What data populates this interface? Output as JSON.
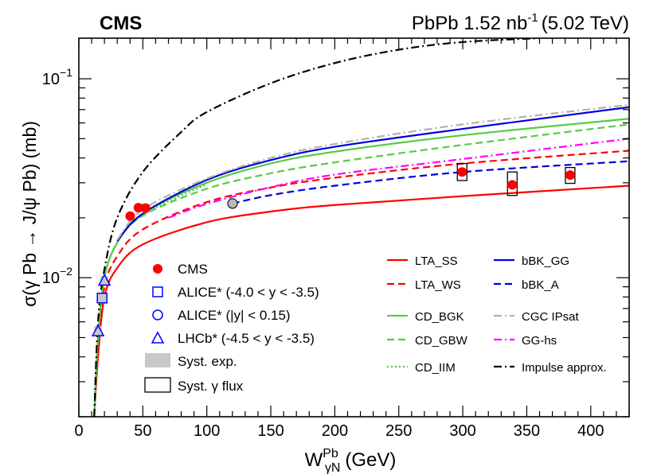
{
  "header": {
    "experiment": "CMS",
    "dataset_prefix": "PbPb 1.52 nb",
    "dataset_exp": "-1",
    "dataset_suffix": "(5.02 TeV)"
  },
  "chart_data": {
    "type": "scatter",
    "title": "",
    "xlabel_main": "W",
    "xlabel_sub": "γN",
    "xlabel_sup": "Pb",
    "xlabel_unit": "(GeV)",
    "ylabel": "σ(γ Pb → J/ψ Pb) (mb)",
    "xlim": [
      0,
      430
    ],
    "ylim": [
      0.002,
      0.16
    ],
    "yscale": "log",
    "x_ticks": [
      "0",
      "50",
      "100",
      "150",
      "200",
      "250",
      "300",
      "350",
      "400"
    ],
    "x_tick_values": [
      0,
      50,
      100,
      150,
      200,
      250,
      300,
      350,
      400
    ],
    "y_tick_labels": [
      {
        "value": 0.01,
        "base": "10",
        "exp": "−2"
      },
      {
        "value": 0.1,
        "base": "10",
        "exp": "−1"
      }
    ],
    "grid": false,
    "markers": [
      {
        "name": "CMS",
        "legend_label": "CMS",
        "shape": "filled-circle",
        "color": "#ff0000",
        "points": [
          {
            "x": 40.1,
            "y": 0.0204,
            "syst_lo": 0.0199,
            "syst_hi": 0.0209,
            "flux_lo": 0.0198,
            "flux_hi": 0.021,
            "xerr": 2
          },
          {
            "x": 46.5,
            "y": 0.0225,
            "syst_lo": 0.0217,
            "syst_hi": 0.0234,
            "flux_lo": 0.0216,
            "flux_hi": 0.0235,
            "xerr": 2
          },
          {
            "x": 52.1,
            "y": 0.0224,
            "syst_lo": 0.0212,
            "syst_hi": 0.0236,
            "flux_lo": 0.0211,
            "flux_hi": 0.0237,
            "xerr": 2
          },
          {
            "x": 299.5,
            "y": 0.034,
            "syst_lo": 0.0325,
            "syst_hi": 0.0356,
            "flux_lo": 0.0308,
            "flux_hi": 0.0375,
            "xerr": 3
          },
          {
            "x": 338.7,
            "y": 0.0293,
            "syst_lo": 0.0281,
            "syst_hi": 0.0306,
            "flux_lo": 0.0259,
            "flux_hi": 0.034,
            "xerr": 3
          },
          {
            "x": 383.9,
            "y": 0.0328,
            "syst_lo": 0.0314,
            "syst_hi": 0.0342,
            "flux_lo": 0.0298,
            "flux_hi": 0.0358,
            "xerr": 3
          }
        ]
      },
      {
        "name": "ALICE-forward",
        "legend_label": "ALICE* (-4.0 < y < -3.5)",
        "shape": "open-square",
        "color": "#0000ff",
        "points": [
          {
            "x": 18.2,
            "y": 0.0079,
            "syst_lo": 0.0074,
            "syst_hi": 0.0084
          }
        ]
      },
      {
        "name": "ALICE-mid",
        "legend_label": "ALICE* (|y| < 0.15)",
        "shape": "open-circle",
        "color": "#0000ff",
        "points": [
          {
            "x": 120.1,
            "y": 0.0236
          }
        ]
      },
      {
        "name": "LHCb",
        "legend_label": "LHCb* (-4.5 < y < -3.5)",
        "shape": "open-triangle",
        "color": "#0000ff",
        "points": [
          {
            "x": 15.0,
            "y": 0.0054,
            "syst_lo": 0.0051,
            "syst_hi": 0.0057
          },
          {
            "x": 20.0,
            "y": 0.0097,
            "syst_lo": 0.0092,
            "syst_hi": 0.0102
          }
        ]
      }
    ],
    "band_legend": [
      {
        "name": "syst-exp",
        "label": "Syst. exp.",
        "style": "filled-gray"
      },
      {
        "name": "syst-flux",
        "label": "Syst. γ flux",
        "style": "open-box"
      }
    ],
    "series": [
      {
        "name": "LTA_SS",
        "legend_label": "LTA_SS",
        "color": "#ff0000",
        "dash": "solid",
        "x": [
          12,
          15,
          20,
          30,
          50,
          100,
          150,
          200,
          300,
          430
        ],
        "y": [
          0.002,
          0.004,
          0.008,
          0.0112,
          0.0147,
          0.019,
          0.0215,
          0.0232,
          0.0257,
          0.029
        ]
      },
      {
        "name": "LTA_WS",
        "legend_label": "LTA_WS",
        "color": "#ff0000",
        "dash": "dashed",
        "x": [
          12,
          15,
          20,
          30,
          50,
          100,
          150,
          200,
          300,
          430
        ],
        "y": [
          0.002,
          0.0045,
          0.009,
          0.0128,
          0.0175,
          0.024,
          0.0284,
          0.0318,
          0.0375,
          0.0435
        ]
      },
      {
        "name": "CD_BGK",
        "legend_label": "CD_BGK",
        "color": "#55cc44",
        "dash": "solid",
        "x": [
          12,
          15,
          20,
          30,
          50,
          100,
          150,
          200,
          300,
          430
        ],
        "y": [
          0.002,
          0.005,
          0.01,
          0.015,
          0.021,
          0.03,
          0.0375,
          0.043,
          0.052,
          0.063
        ]
      },
      {
        "name": "CD_GBW",
        "legend_label": "CD_GBW",
        "color": "#55cc44",
        "dash": "dashed",
        "x": [
          12,
          15,
          20,
          30,
          50,
          100,
          150,
          200,
          300,
          430
        ],
        "y": [
          0.002,
          0.005,
          0.01,
          0.015,
          0.0205,
          0.028,
          0.0335,
          0.038,
          0.0465,
          0.059
        ]
      },
      {
        "name": "CD_IIM",
        "legend_label": "CD_IIM",
        "color": "#55cc44",
        "dash": "dotted",
        "x": [
          12,
          15,
          20,
          30,
          50,
          100
        ],
        "y": [
          0.002,
          0.005,
          0.01,
          0.015,
          0.0207,
          0.0295
        ]
      },
      {
        "name": "bBK_GG",
        "legend_label": "bBK_GG",
        "color": "#0000dd",
        "dash": "solid",
        "x": [
          30,
          50,
          100,
          150,
          200,
          300,
          430
        ],
        "y": [
          0.0153,
          0.021,
          0.031,
          0.039,
          0.0455,
          0.056,
          0.072
        ]
      },
      {
        "name": "bBK_A",
        "legend_label": "bBK_A",
        "color": "#0000dd",
        "dash": "dashed",
        "x": [
          120,
          150,
          200,
          300,
          430
        ],
        "y": [
          0.0236,
          0.026,
          0.029,
          0.034,
          0.0385
        ]
      },
      {
        "name": "CGC_IPsat",
        "legend_label": "CGC IPsat",
        "color": "#b8b0a8",
        "dash": "dashdot",
        "x": [
          30,
          50,
          100,
          150,
          200,
          300,
          430
        ],
        "y": [
          0.0155,
          0.022,
          0.0315,
          0.04,
          0.047,
          0.059,
          0.074
        ]
      },
      {
        "name": "GG-hs",
        "legend_label": "GG-hs",
        "color": "#ff00ff",
        "dash": "dashdot",
        "x": [
          70,
          100,
          150,
          200,
          300,
          430
        ],
        "y": [
          0.02,
          0.0235,
          0.0285,
          0.033,
          0.0395,
          0.05
        ]
      },
      {
        "name": "Impulse",
        "legend_label": "Impulse approx.",
        "color": "#000000",
        "dash": "dashdot",
        "x": [
          12,
          15,
          20,
          30,
          50,
          80,
          100,
          150,
          200,
          250,
          300,
          360
        ],
        "y": [
          0.002,
          0.006,
          0.011,
          0.02,
          0.034,
          0.054,
          0.068,
          0.095,
          0.12,
          0.14,
          0.153,
          0.16
        ]
      }
    ]
  }
}
